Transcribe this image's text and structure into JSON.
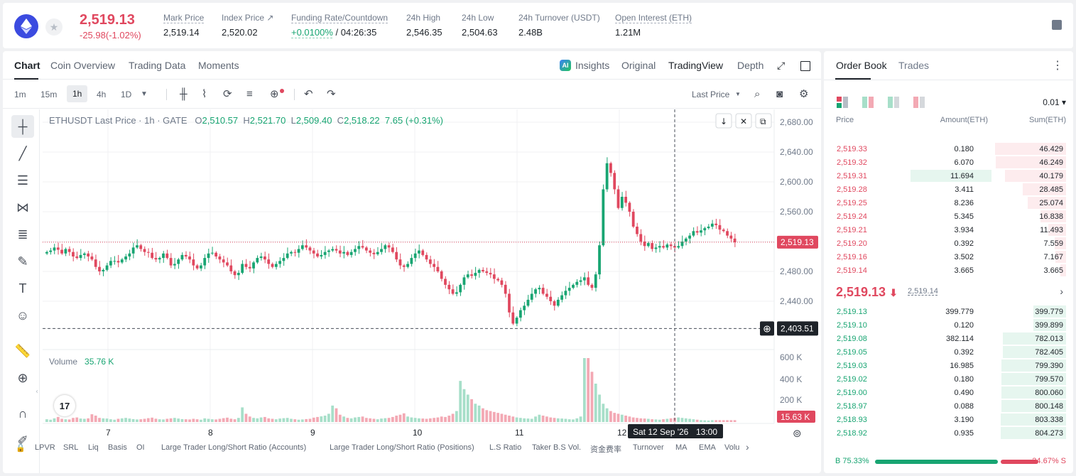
{
  "ticker": {
    "last_price": "2,519.13",
    "change": "-25.98(-1.02%)",
    "stats": [
      {
        "label": "Mark Price",
        "value": "2,519.14"
      },
      {
        "label": "Index Price ↗",
        "value": "2,520.02"
      },
      {
        "label": "Funding Rate/Countdown",
        "value_green": "+0.0100%",
        "value": " / 04:26:35"
      },
      {
        "label": "24h High",
        "value": "2,546.35"
      },
      {
        "label": "24h Low",
        "value": "2,504.63"
      },
      {
        "label": "24h Turnover (USDT)",
        "value": "2.48B"
      },
      {
        "label": "Open Interest (ETH)",
        "value": "1.21M"
      }
    ]
  },
  "tabs": [
    "Chart",
    "Coin Overview",
    "Trading Data",
    "Moments"
  ],
  "views": {
    "insights": "Insights",
    "original": "Original",
    "tradingview": "TradingView",
    "depth": "Depth"
  },
  "intervals": [
    "1m",
    "15m",
    "1h",
    "4h",
    "1D"
  ],
  "price_type": "Last Price",
  "legend": {
    "symbol": "ETHUSDT Last Price · 1h · GATE",
    "o": "2,510.57",
    "h": "2,521.70",
    "l": "2,509.40",
    "c": "2,518.22",
    "chg": "7.65 (+0.31%)"
  },
  "volume_legend": {
    "label": "Volume",
    "value": "35.76 K"
  },
  "crosshair": {
    "date_label": "Sat 12 Sep '26",
    "time_label": "13:00",
    "price_label": "2,403.51"
  },
  "indicators": [
    "LPVR",
    "SRL",
    "Liq",
    "Basis",
    "OI",
    "Large Trader Long/Short Ratio (Accounts)",
    "Large Trader Long/Short Ratio (Positions)",
    "L.S Ratio",
    "Taker B.S Vol.",
    "资金费率",
    "Turnover",
    "MA",
    "EMA",
    "Volu"
  ],
  "chart_data": {
    "type": "candlestick",
    "price_axis": [
      2680,
      2640,
      2600,
      2560,
      2520,
      2480,
      2440
    ],
    "price_axis_labels": [
      "2,680.00",
      "2,640.00",
      "2,600.00",
      "2,560.00",
      "2,480.00",
      "2,440.00"
    ],
    "current_price_label": "2,519.13",
    "volume_axis_labels": [
      "600 K",
      "400 K",
      "200 K"
    ],
    "current_volume_label": "15.63 K",
    "x_tick_labels": [
      "7",
      "8",
      "9",
      "10",
      "11",
      "12"
    ],
    "series": [
      {
        "name": "price",
        "close": [
          2506,
          2508,
          2512,
          2509,
          2504,
          2510,
          2506,
          2500,
          2498,
          2502,
          2504,
          2500,
          2496,
          2486,
          2480,
          2482,
          2488,
          2494,
          2494,
          2492,
          2496,
          2500,
          2504,
          2512,
          2515,
          2510,
          2506,
          2505,
          2498,
          2496,
          2498,
          2504,
          2498,
          2488,
          2490,
          2496,
          2502,
          2500,
          2496,
          2488,
          2484,
          2488,
          2498,
          2504,
          2505,
          2500,
          2496,
          2492,
          2488,
          2480,
          2475,
          2478,
          2490,
          2486,
          2484,
          2492,
          2498,
          2500,
          2496,
          2490,
          2486,
          2490,
          2494,
          2498,
          2504,
          2506,
          2505,
          2510,
          2515,
          2512,
          2508,
          2504,
          2500,
          2502,
          2506,
          2508,
          2510,
          2508,
          2504,
          2506,
          2502,
          2506,
          2510,
          2514,
          2512,
          2508,
          2505,
          2503,
          2506,
          2510,
          2515,
          2512,
          2506,
          2496,
          2488,
          2486,
          2490,
          2498,
          2504,
          2508,
          2502,
          2496,
          2490,
          2486,
          2480,
          2470,
          2462,
          2456,
          2450,
          2452,
          2462,
          2472,
          2476,
          2474,
          2478,
          2482,
          2480,
          2478,
          2476,
          2470,
          2468,
          2462,
          2450,
          2425,
          2410,
          2418,
          2428,
          2434,
          2442,
          2450,
          2456,
          2458,
          2450,
          2446,
          2440,
          2434,
          2442,
          2448,
          2454,
          2458,
          2462,
          2466,
          2468,
          2472,
          2462,
          2458,
          2476,
          2515,
          2590,
          2625,
          2612,
          2590,
          2565,
          2580,
          2572,
          2560,
          2540,
          2530,
          2520,
          2514,
          2518,
          2510,
          2512,
          2514,
          2512,
          2516,
          2514,
          2512,
          2514,
          2520,
          2524,
          2528,
          2534,
          2532,
          2535,
          2538,
          2540,
          2544,
          2542,
          2536,
          2534,
          2528,
          2524,
          2519
        ]
      },
      {
        "name": "volume",
        "values": [
          30,
          25,
          40,
          55,
          35,
          30,
          28,
          45,
          50,
          38,
          35,
          40,
          85,
          70,
          45,
          40,
          38,
          30,
          25,
          35,
          40,
          45,
          38,
          32,
          28,
          30,
          35,
          42,
          48,
          36,
          30,
          28,
          35,
          40,
          45,
          38,
          32,
          30,
          28,
          35,
          30,
          25,
          40,
          35,
          30,
          28,
          35,
          42,
          48,
          36,
          30,
          45,
          160,
          90,
          60,
          45,
          40,
          50,
          55,
          40,
          35,
          30,
          38,
          42,
          45,
          35,
          30,
          25,
          28,
          32,
          35,
          48,
          55,
          62,
          70,
          90,
          180,
          150,
          80,
          60,
          45,
          40,
          50,
          55,
          60,
          45,
          40,
          35,
          30,
          38,
          42,
          45,
          55,
          70,
          80,
          95,
          60,
          50,
          45,
          40,
          38,
          35,
          40,
          45,
          50,
          60,
          55,
          70,
          90,
          120,
          450,
          360,
          300,
          250,
          200,
          180,
          150,
          130,
          120,
          110,
          100,
          90,
          80,
          70,
          60,
          50,
          45,
          40,
          38,
          35,
          60,
          80,
          70,
          60,
          50,
          45,
          40,
          38,
          35,
          30,
          28,
          40,
          60,
          700,
          700,
          550,
          420,
          300,
          200,
          150,
          120,
          100,
          90,
          80,
          70,
          60,
          50,
          45,
          40,
          38,
          35,
          30,
          28,
          25,
          30,
          35,
          40,
          45,
          50,
          45,
          40,
          35,
          30,
          25,
          20,
          18,
          16
        ]
      }
    ]
  },
  "orderbook": {
    "tabs": [
      "Order Book",
      "Trades"
    ],
    "precision": "0.01 ▾",
    "columns": [
      "Price",
      "Amount(ETH)",
      "Sum(ETH)"
    ],
    "asks": [
      {
        "price": "2,519.33",
        "amount": "0.180",
        "sum": "46.429",
        "depth": 1.0,
        "amt_frac": 0
      },
      {
        "price": "2,519.32",
        "amount": "6.070",
        "sum": "46.249",
        "depth": 0.99,
        "amt_frac": 0
      },
      {
        "price": "2,519.31",
        "amount": "11.694",
        "sum": "40.179",
        "depth": 0.86,
        "amt_frac": 0.95
      },
      {
        "price": "2,519.28",
        "amount": "3.411",
        "sum": "28.485",
        "depth": 0.61,
        "amt_frac": 0
      },
      {
        "price": "2,519.25",
        "amount": "8.236",
        "sum": "25.074",
        "depth": 0.54,
        "amt_frac": 0
      },
      {
        "price": "2,519.24",
        "amount": "5.345",
        "sum": "16.838",
        "depth": 0.36,
        "amt_frac": 0
      },
      {
        "price": "2,519.21",
        "amount": "3.934",
        "sum": "11.493",
        "depth": 0.25,
        "amt_frac": 0
      },
      {
        "price": "2,519.20",
        "amount": "0.392",
        "sum": "7.559",
        "depth": 0.16,
        "amt_frac": 0
      },
      {
        "price": "2,519.16",
        "amount": "3.502",
        "sum": "7.167",
        "depth": 0.15,
        "amt_frac": 0
      },
      {
        "price": "2,519.14",
        "amount": "3.665",
        "sum": "3.665",
        "depth": 0.08,
        "amt_frac": 0
      }
    ],
    "mid_price": "2,519.13",
    "mark_price": "2,519.14",
    "bids": [
      {
        "price": "2,519.13",
        "amount": "399.779",
        "sum": "399.779",
        "depth": 0.5
      },
      {
        "price": "2,519.10",
        "amount": "0.120",
        "sum": "399.899",
        "depth": 0.5
      },
      {
        "price": "2,519.08",
        "amount": "382.114",
        "sum": "782.013",
        "depth": 0.97
      },
      {
        "price": "2,519.05",
        "amount": "0.392",
        "sum": "782.405",
        "depth": 0.97
      },
      {
        "price": "2,519.03",
        "amount": "16.985",
        "sum": "799.390",
        "depth": 0.99
      },
      {
        "price": "2,519.02",
        "amount": "0.180",
        "sum": "799.570",
        "depth": 0.99
      },
      {
        "price": "2,519.00",
        "amount": "0.490",
        "sum": "800.060",
        "depth": 0.99
      },
      {
        "price": "2,518.97",
        "amount": "0.088",
        "sum": "800.148",
        "depth": 0.99
      },
      {
        "price": "2,518.93",
        "amount": "3.190",
        "sum": "803.338",
        "depth": 1.0
      },
      {
        "price": "2,518.92",
        "amount": "0.935",
        "sum": "804.273",
        "depth": 1.0
      }
    ],
    "buy_ratio": "B 75.33%",
    "sell_ratio": "24.67% S",
    "buy_frac": 0.7533
  },
  "colors": {
    "up": "#18a572",
    "down": "#e0485f",
    "up_light": "#a7dfc9",
    "down_light": "#f3a9b4"
  }
}
